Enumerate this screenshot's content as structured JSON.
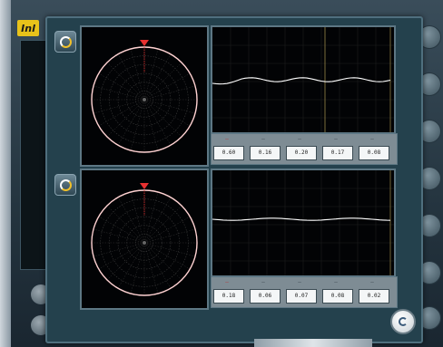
{
  "app": {
    "logo_text": "Inl"
  },
  "colors": {
    "plot_background": "#020305",
    "trace": "#ffffff",
    "polar_ring": "#ffd2d2",
    "marker": "#e83030",
    "accent_gold": "#f0c02a",
    "panel": "#24414d"
  },
  "sensors": [
    {
      "icon": "sensor-dial-icon",
      "polar_marker": "red-triangle",
      "readout_headers": [
        "—",
        "—",
        "—",
        "—",
        "—"
      ],
      "readout_values": [
        "0.60",
        "0.16",
        "0.20",
        "0.17",
        "0.08"
      ]
    },
    {
      "icon": "sensor-dial-icon",
      "polar_marker": "red-triangle",
      "readout_headers": [
        "—",
        "—",
        "—",
        "—",
        "—"
      ],
      "readout_values": [
        "0.18",
        "0.06",
        "0.07",
        "0.08",
        "0.02"
      ]
    }
  ],
  "controls": {
    "refresh_icon": "refresh-icon"
  }
}
